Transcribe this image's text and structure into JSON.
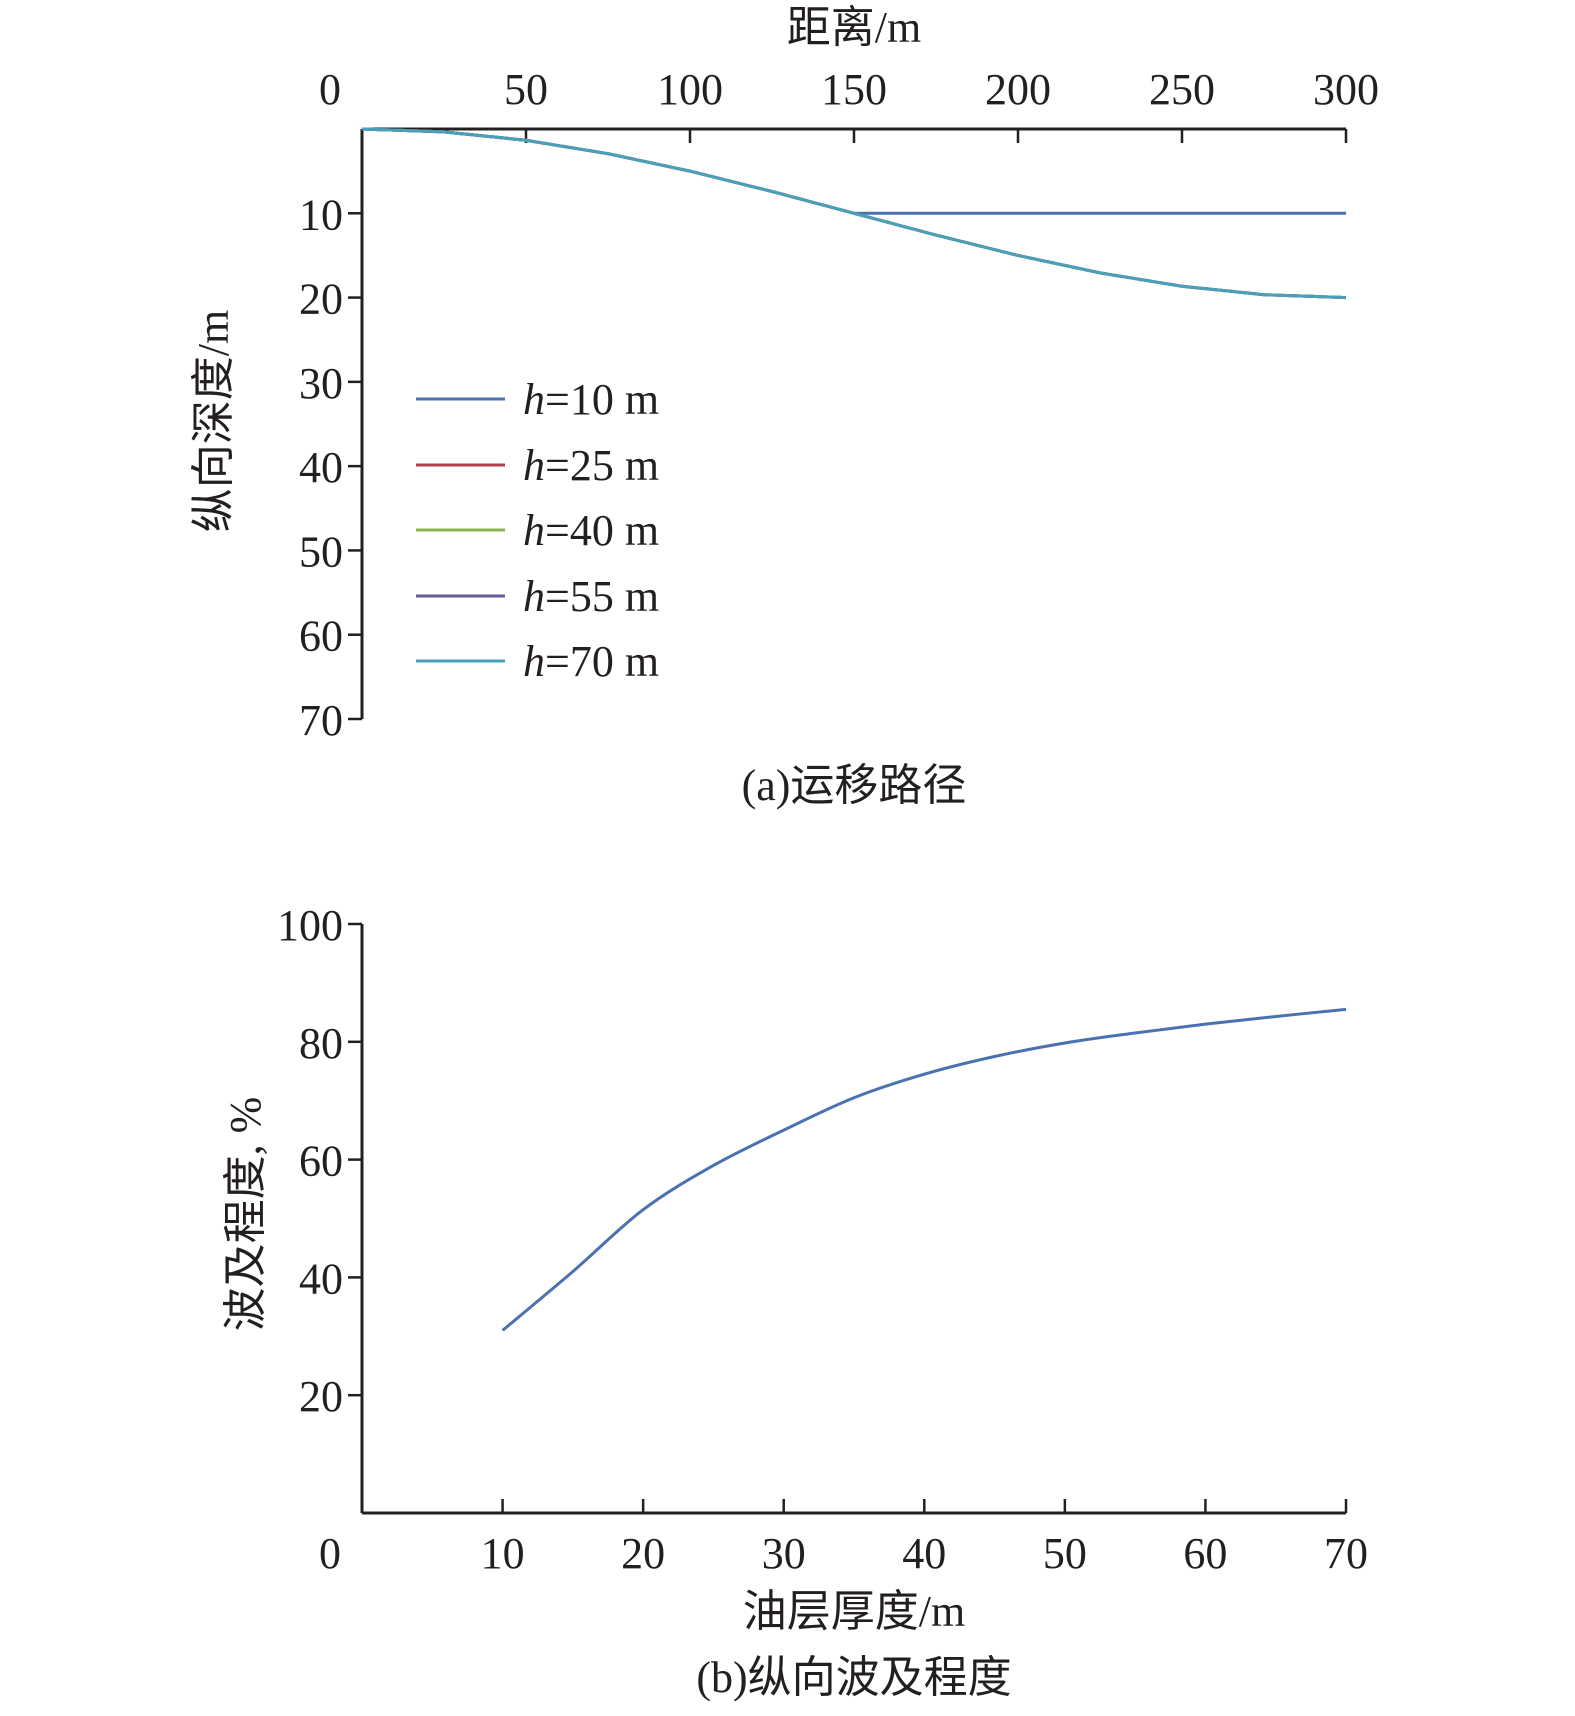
{
  "chart_data": [
    {
      "type": "line",
      "caption": "(a)运移路径",
      "xlabel": "距离/m",
      "ylabel": "纵向深度/m",
      "x_axis_position": "top",
      "y_inverted": true,
      "xlim": [
        0,
        300
      ],
      "ylim": [
        0,
        70
      ],
      "xticks": [
        0,
        50,
        100,
        150,
        200,
        250,
        300
      ],
      "yticks": [
        10,
        20,
        30,
        40,
        50,
        60,
        70
      ],
      "grid": false,
      "legend_placement": "left-middle",
      "x": [
        0,
        25,
        50,
        75,
        100,
        125,
        150,
        175,
        200,
        225,
        250,
        275,
        300
      ],
      "series": [
        {
          "name": "h=10 m",
          "label_italic": "h",
          "label_rest": "=10 m",
          "color": "#4a72b0",
          "values": [
            0,
            0.34,
            1.34,
            2.93,
            5.0,
            7.41,
            10,
            10,
            10,
            10,
            10,
            10,
            10
          ]
        },
        {
          "name": "h=25 m",
          "label_italic": "h",
          "label_rest": "=25 m",
          "color": "#b0404a",
          "values": [
            0,
            0.34,
            1.34,
            2.93,
            5.0,
            7.41,
            10,
            12.59,
            15.0,
            17.07,
            18.66,
            19.66,
            20
          ]
        },
        {
          "name": "h=40 m",
          "label_italic": "h",
          "label_rest": "=40 m",
          "color": "#8ab450",
          "values": [
            0,
            0.34,
            1.34,
            2.93,
            5.0,
            7.41,
            10,
            12.59,
            15.0,
            17.07,
            18.66,
            19.66,
            20
          ]
        },
        {
          "name": "h=55 m",
          "label_italic": "h",
          "label_rest": "=55 m",
          "color": "#6a5a9a",
          "values": [
            0,
            0.34,
            1.34,
            2.93,
            5.0,
            7.41,
            10,
            12.59,
            15.0,
            17.07,
            18.66,
            19.66,
            20
          ]
        },
        {
          "name": "h=70 m",
          "label_italic": "h",
          "label_rest": "=70 m",
          "color": "#4aa0b8",
          "values": [
            0,
            0.34,
            1.34,
            2.93,
            5.0,
            7.41,
            10,
            12.59,
            15.0,
            17.07,
            18.66,
            19.66,
            20
          ]
        }
      ]
    },
    {
      "type": "line",
      "caption": "(b)纵向波及程度",
      "xlabel": "油层厚度/m",
      "ylabel": "波及程度, %",
      "xlim": [
        0,
        70
      ],
      "ylim": [
        0,
        100
      ],
      "xticks": [
        0,
        10,
        20,
        30,
        40,
        50,
        60,
        70
      ],
      "yticks": [
        20,
        40,
        60,
        80,
        100
      ],
      "grid": false,
      "x": [
        10,
        15,
        20,
        25,
        30,
        35,
        40,
        45,
        50,
        55,
        60,
        65,
        70
      ],
      "series": [
        {
          "color": "#4a72b0",
          "values": [
            31,
            41,
            51.5,
            59,
            65,
            70.5,
            74.5,
            77.5,
            79.8,
            81.5,
            83,
            84.3,
            85.5
          ]
        }
      ]
    }
  ]
}
